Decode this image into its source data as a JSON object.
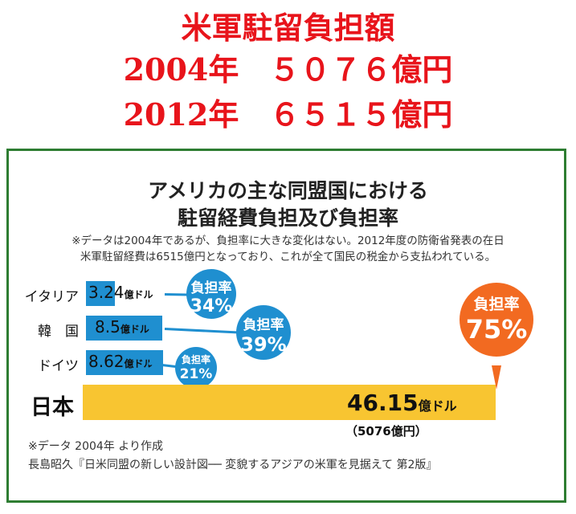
{
  "header": {
    "line1": "米軍駐留負担額",
    "line2": "2004年　５０７６億円",
    "line3": "2012年　６５１５億円"
  },
  "chart_data": {
    "type": "bar",
    "title": "アメリカの主な同盟国における",
    "subtitle": "駐留経費負担及び負担率",
    "note1": "※データは2004年であるが、負担率に大きな変化はない。2012年度の防衛省発表の在日",
    "note2": "米軍駐留経費は6515億円となっており、これが全て国民の税金から支払われている。",
    "unit": "億ドル",
    "rate_label": "負担率",
    "categories": [
      "イタリア",
      "韓　国",
      "ドイツ",
      "日本"
    ],
    "values": [
      3.24,
      8.5,
      8.62,
      46.15
    ],
    "value_labels": [
      "3.24",
      "8.5",
      "8.62",
      "46.15"
    ],
    "rates": [
      "34%",
      "39%",
      "21%",
      "75%"
    ],
    "japan_yen": "（5076億円）",
    "source1": "※データ 2004年 より作成",
    "source2": "長島昭久『日米同盟の新しい設計図── 変貌するアジアの米軍を見据えて 第2版』",
    "colors": {
      "bar": "#1f8fd0",
      "japan": "#f8c531",
      "japan_rate": "#f26a21"
    }
  }
}
